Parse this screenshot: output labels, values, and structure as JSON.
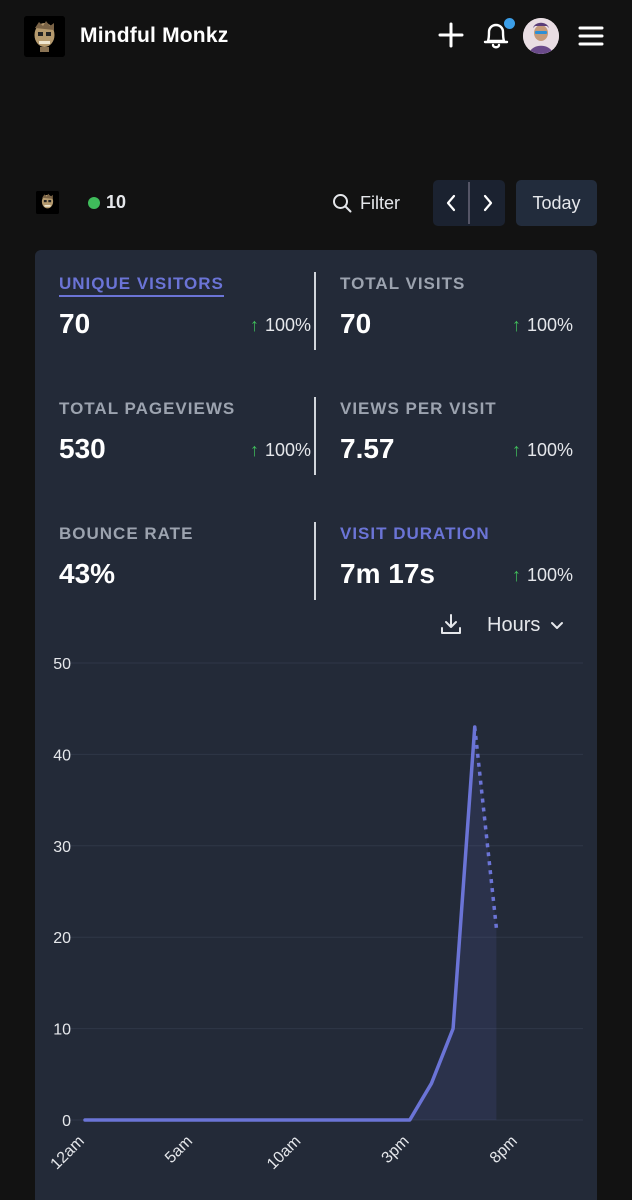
{
  "header": {
    "brand": "Mindful Monkz",
    "icons": [
      "plus-icon",
      "bell-icon",
      "user-avatar",
      "hamburger-menu-icon"
    ],
    "notification_dot_color": "#3b9ee8"
  },
  "toolbar": {
    "live_visitors": "10",
    "filter_label": "Filter",
    "period_label": "Today"
  },
  "metrics": [
    {
      "label": "UNIQUE VISITORS",
      "value": "70",
      "change": "100%",
      "active": true
    },
    {
      "label": "TOTAL VISITS",
      "value": "70",
      "change": "100%"
    },
    {
      "label": "TOTAL PAGEVIEWS",
      "value": "530",
      "change": "100%"
    },
    {
      "label": "VIEWS PER VISIT",
      "value": "7.57",
      "change": "100%"
    },
    {
      "label": "BOUNCE RATE",
      "value": "43%",
      "change": ""
    },
    {
      "label": "VISIT DURATION",
      "value": "7m 17s",
      "change": "100%",
      "highlight": true
    }
  ],
  "chart_controls": {
    "interval_label": "Hours"
  },
  "chart_data": {
    "type": "line",
    "x_tick_labels": [
      "12am",
      "5am",
      "10am",
      "3pm",
      "8pm"
    ],
    "x_tick_hours": [
      0,
      5,
      10,
      15,
      20
    ],
    "y_ticks": [
      0,
      10,
      20,
      30,
      40,
      50
    ],
    "ylim": [
      0,
      50
    ],
    "series": [
      {
        "style": "solid",
        "x": [
          0,
          1,
          2,
          3,
          4,
          5,
          6,
          7,
          8,
          9,
          10,
          11,
          12,
          13,
          14,
          15,
          16,
          17,
          18
        ],
        "values": [
          0,
          0,
          0,
          0,
          0,
          0,
          0,
          0,
          0,
          0,
          0,
          0,
          0,
          0,
          0,
          0,
          4,
          10,
          43
        ]
      },
      {
        "style": "dashed",
        "x": [
          18,
          19
        ],
        "values": [
          43,
          21
        ]
      }
    ],
    "line_color": "#6b74d6",
    "grid": true
  }
}
